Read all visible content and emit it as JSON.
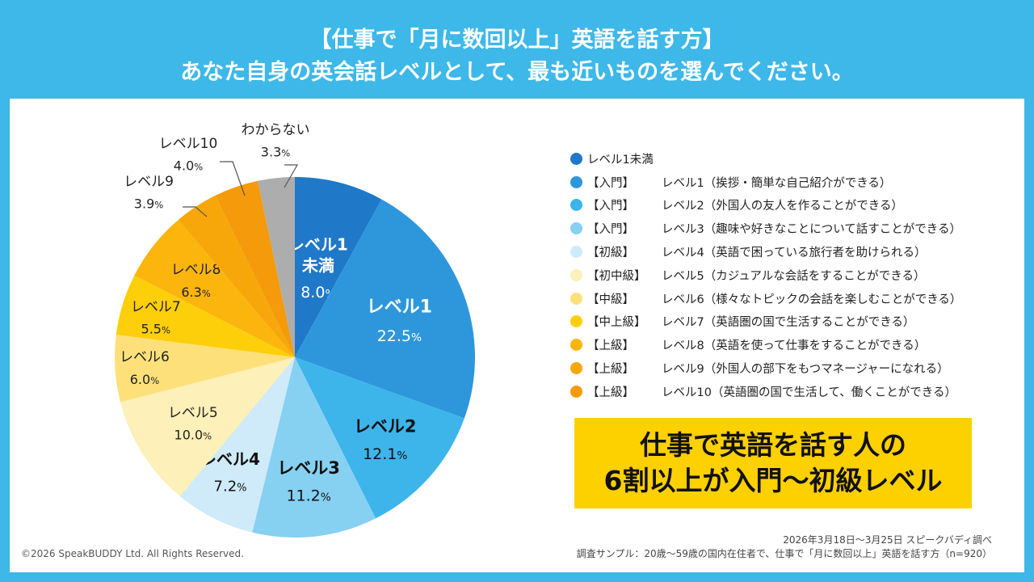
{
  "header": {
    "title_line1": "【仕事で「月に数回以上」英語を話す方】",
    "title_line2": "あなた自身の英会話レベルとして、最も近いものを選んでください。"
  },
  "chart_data": {
    "type": "pie",
    "title": "あなた自身の英会話レベルとして、最も近いものを選んでください。",
    "start_angle_deg": 0,
    "direction": "clockwise",
    "slices": [
      {
        "name": "レベル1未満",
        "label_lines": [
          "レベル1",
          "未満"
        ],
        "value": 8.0,
        "color": "#1f78c8",
        "label_color": "#ffffff",
        "label_bold": true
      },
      {
        "name": "レベル1",
        "label_lines": [
          "レベル1"
        ],
        "value": 22.5,
        "color": "#2e97dc",
        "label_color": "#ffffff",
        "label_bold": true
      },
      {
        "name": "レベル2",
        "label_lines": [
          "レベル2"
        ],
        "value": 12.1,
        "color": "#3db5ea",
        "label_color": "#111111",
        "label_bold": true
      },
      {
        "name": "レベル3",
        "label_lines": [
          "レベル3"
        ],
        "value": 11.2,
        "color": "#86d0f2",
        "label_color": "#111111",
        "label_bold": true
      },
      {
        "name": "レベル4",
        "label_lines": [
          "レベル4"
        ],
        "value": 7.2,
        "color": "#cfeaf8",
        "label_color": "#111111",
        "label_bold": true
      },
      {
        "name": "レベル5",
        "label_lines": [
          "レベル5"
        ],
        "value": 10.0,
        "color": "#fdf0b8",
        "label_color": "#222222",
        "label_bold": false
      },
      {
        "name": "レベル6",
        "label_lines": [
          "レベル6"
        ],
        "value": 6.0,
        "color": "#fde07a",
        "label_color": "#222222",
        "label_bold": false
      },
      {
        "name": "レベル7",
        "label_lines": [
          "レベル7"
        ],
        "value": 5.5,
        "color": "#fdcf0a",
        "label_color": "#222222",
        "label_bold": false
      },
      {
        "name": "レベル8",
        "label_lines": [
          "レベル8"
        ],
        "value": 6.3,
        "color": "#fbb50c",
        "label_color": "#222222",
        "label_bold": false
      },
      {
        "name": "レベル9",
        "label_lines": [
          "レベル9"
        ],
        "value": 3.9,
        "color": "#f8a70a",
        "label_color": "#222222",
        "label_bold": false
      },
      {
        "name": "レベル10",
        "label_lines": [
          "レベル10"
        ],
        "value": 4.0,
        "color": "#f59a0a",
        "label_color": "#222222",
        "label_bold": false
      },
      {
        "name": "わからない",
        "label_lines": [
          "わからない"
        ],
        "value": 3.3,
        "color": "#adadad",
        "label_color": "#222222",
        "label_bold": false
      }
    ],
    "value_suffix": "%",
    "legend": {
      "placement": "right",
      "items": [
        {
          "tag": "",
          "text": "レベル1未満",
          "color": "#1f78c8"
        },
        {
          "tag": "【入門】",
          "text": "レベル1（挨拶・簡単な自己紹介ができる）",
          "color": "#2e97dc"
        },
        {
          "tag": "【入門】",
          "text": "レベル2（外国人の友人を作ることができる）",
          "color": "#3db5ea"
        },
        {
          "tag": "【入門】",
          "text": "レベル3（趣味や好きなことについて話すことができる）",
          "color": "#86d0f2"
        },
        {
          "tag": "【初級】",
          "text": "レベル4（英語で困っている旅行者を助けられる）",
          "color": "#cfeaf8"
        },
        {
          "tag": "【初中級】",
          "text": "レベル5（カジュアルな会話をすることができる）",
          "color": "#fdf0b8"
        },
        {
          "tag": "【中級】",
          "text": "レベル6（様々なトピックの会話を楽しむことができる）",
          "color": "#fde07a"
        },
        {
          "tag": "【中上級】",
          "text": "レベル7（英語圏の国で生活することができる）",
          "color": "#fdcf0a"
        },
        {
          "tag": "【上級】",
          "text": "レベル8（英語を使って仕事をすることができる）",
          "color": "#fbb50c"
        },
        {
          "tag": "【上級】",
          "text": "レベル9（外国人の部下をもつマネージャーになれる）",
          "color": "#f8a70a"
        },
        {
          "tag": "【上級】",
          "text": "レベル10（英語圏の国で生活して、働くことができる）",
          "color": "#f59a0a"
        }
      ]
    }
  },
  "callout": {
    "line1": "仕事で英語を話す人の",
    "line2": "6割以上が入門〜初級レベル",
    "color": "#fdd000"
  },
  "footer": {
    "copyright": "©2026 SpeakBUDDY Ltd. All Rights Reserved.",
    "survey_period": "2026年3月18日〜3月25日 スピークバディ調べ",
    "sample": "調査サンプル：20歳〜59歳の国内在住者で、仕事で「月に数回以上」英語を話す方（n=920）"
  },
  "colors": {
    "background": "#3db8e8",
    "panel": "#ffffff"
  }
}
